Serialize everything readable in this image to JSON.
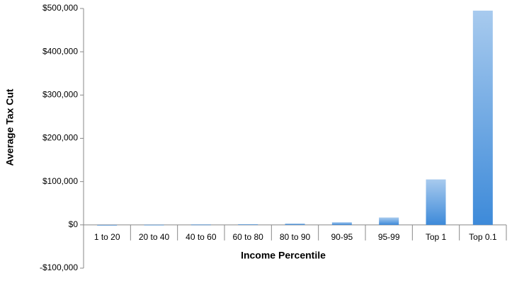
{
  "chart_data": {
    "type": "bar",
    "x_label": "Income Percentile",
    "y_label": "Average Tax Cut",
    "categories": [
      "1 to 20",
      "20 to 40",
      "40 to 60",
      "60 to 80",
      "80 to 90",
      "90-95",
      "95-99",
      "Top 1",
      "Top 0.1"
    ],
    "values": [
      100,
      500,
      1000,
      1500,
      3000,
      6000,
      17000,
      105000,
      495000
    ],
    "color": "#3d8ad9",
    "ylim": [
      -100000,
      500000
    ],
    "yticks": [
      {
        "value": -100000,
        "label": "-$100,000"
      },
      {
        "value": 0,
        "label": "$0"
      },
      {
        "value": 100000,
        "label": "$100,000"
      },
      {
        "value": 200000,
        "label": "$200,000"
      },
      {
        "value": 300000,
        "label": "$300,000"
      },
      {
        "value": 400000,
        "label": "$400,000"
      },
      {
        "value": 500000,
        "label": "$500,000"
      }
    ],
    "grid": false
  }
}
